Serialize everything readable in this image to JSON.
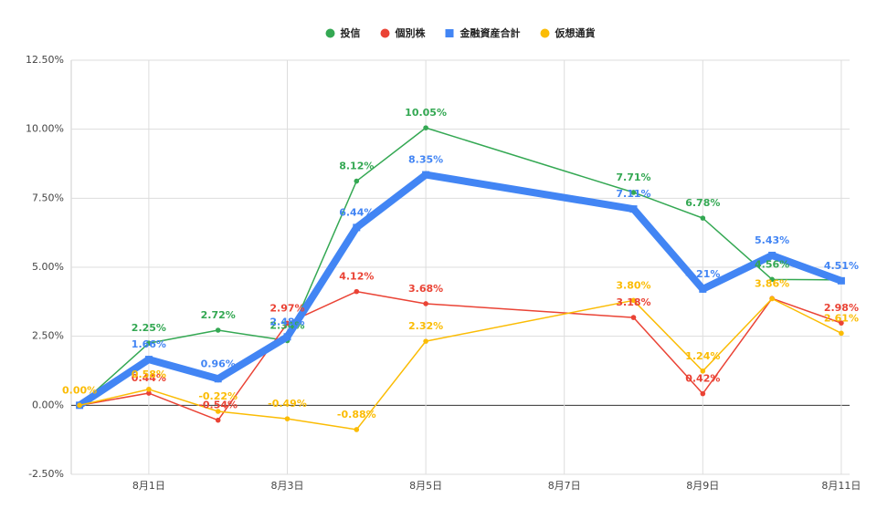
{
  "chart_data": {
    "type": "line",
    "x": [
      0,
      1,
      2,
      3,
      4,
      5,
      8,
      9,
      10,
      11
    ],
    "xlim": [
      -0.12,
      11.12
    ],
    "xticks": [
      {
        "value": 1,
        "label": "8月1日"
      },
      {
        "value": 3,
        "label": "8月3日"
      },
      {
        "value": 5,
        "label": "8月5日"
      },
      {
        "value": 7,
        "label": "8月7日"
      },
      {
        "value": 9,
        "label": "8月9日"
      },
      {
        "value": 11,
        "label": "8月11日"
      }
    ],
    "ylim": [
      -2.5,
      12.5
    ],
    "yticks": [
      {
        "value": -2.5,
        "label": "-2.50%"
      },
      {
        "value": 0,
        "label": "0.00%"
      },
      {
        "value": 2.5,
        "label": "2.50%"
      },
      {
        "value": 5,
        "label": "5.00%"
      },
      {
        "value": 7.5,
        "label": "7.50%"
      },
      {
        "value": 10,
        "label": "10.00%"
      },
      {
        "value": 12.5,
        "label": "12.50%"
      }
    ],
    "grid": true,
    "legend": "top",
    "series": [
      {
        "name": "投信",
        "color": "#34a853",
        "marker": "circle",
        "width": 1.5,
        "values": [
          0,
          2.25,
          2.72,
          2.34,
          8.12,
          10.05,
          7.71,
          6.78,
          4.56,
          4.54
        ],
        "value_labels": [
          null,
          "2.25%",
          "2.72%",
          "2.34%",
          "8.12%",
          "10.05%",
          "7.71%",
          "6.78%",
          "4.56%",
          null
        ]
      },
      {
        "name": "個別株",
        "color": "#ea4335",
        "marker": "circle",
        "width": 1.5,
        "values": [
          0,
          0.44,
          -0.54,
          2.97,
          4.12,
          3.68,
          3.18,
          0.42,
          3.87,
          2.98
        ],
        "value_labels": [
          null,
          "0.44%",
          "-0.54%",
          "2.97%",
          "4.12%",
          "3.68%",
          "3.18%",
          "0.42%",
          null,
          "2.98%"
        ]
      },
      {
        "name": "金融資産合計",
        "color": "#4285f4",
        "marker": "square",
        "width": 8,
        "values": [
          0,
          1.66,
          0.96,
          2.48,
          6.44,
          8.35,
          7.11,
          4.21,
          5.43,
          4.51
        ],
        "value_labels": [
          null,
          "1.66%",
          "0.96%",
          "2.48%",
          "6.44%",
          "8.35%",
          "7.11%",
          "4.21%",
          "5.43%",
          "4.51%"
        ]
      },
      {
        "name": "仮想通貨",
        "color": "#fbbc04",
        "marker": "circle",
        "width": 1.5,
        "values": [
          0,
          0.58,
          -0.22,
          -0.49,
          -0.88,
          2.32,
          3.8,
          1.24,
          3.86,
          2.61
        ],
        "value_labels": [
          "0.00%",
          "0.58%",
          "-0.22%",
          "-0.49%",
          "-0.88%",
          "2.32%",
          "3.80%",
          "1.24%",
          "3.86%",
          "2.61%"
        ]
      }
    ]
  }
}
